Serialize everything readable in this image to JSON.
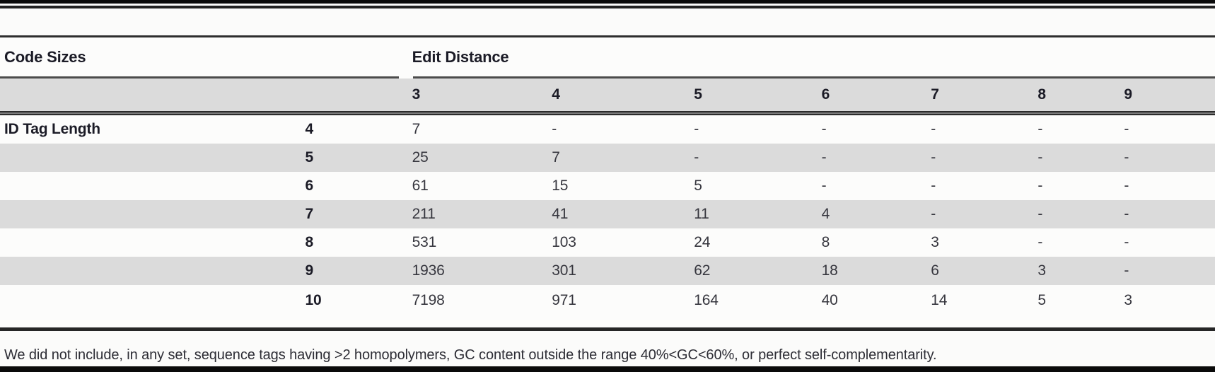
{
  "colors": {
    "band_gray": "#dbdbdb",
    "rule_dark": "#2a2a2a",
    "edge_black": "#0a0a0a",
    "header_text": "#1b1b26",
    "value_text": "#36363e"
  },
  "table": {
    "group_headers": {
      "code_sizes": "Code Sizes",
      "edit_distance": "Edit Distance"
    },
    "edit_distance_cols": [
      "3",
      "4",
      "5",
      "6",
      "7",
      "8",
      "9"
    ],
    "row_group_label": "ID Tag Length",
    "rows": [
      {
        "tag_length": "4",
        "values": [
          "7",
          "-",
          "-",
          "-",
          "-",
          "-",
          "-"
        ]
      },
      {
        "tag_length": "5",
        "values": [
          "25",
          "7",
          "-",
          "-",
          "-",
          "-",
          "-"
        ]
      },
      {
        "tag_length": "6",
        "values": [
          "61",
          "15",
          "5",
          "-",
          "-",
          "-",
          "-"
        ]
      },
      {
        "tag_length": "7",
        "values": [
          "211",
          "41",
          "11",
          "4",
          "-",
          "-",
          "-"
        ]
      },
      {
        "tag_length": "8",
        "values": [
          "531",
          "103",
          "24",
          "8",
          "3",
          "-",
          "-"
        ]
      },
      {
        "tag_length": "9",
        "values": [
          "1936",
          "301",
          "62",
          "18",
          "6",
          "3",
          "-"
        ]
      },
      {
        "tag_length": "10",
        "values": [
          "7198",
          "971",
          "164",
          "40",
          "14",
          "5",
          "3"
        ]
      }
    ],
    "footnote": "We did not include, in any set, sequence tags having >2 homopolymers, GC content outside the range 40%<GC<60%, or perfect self-complementarity."
  }
}
